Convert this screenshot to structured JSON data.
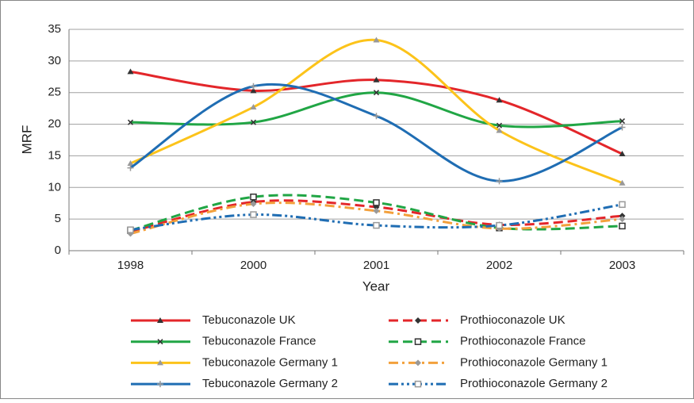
{
  "chart_data": {
    "type": "line",
    "x_label": "Year",
    "y_label": "MRF",
    "categories": [
      "1998",
      "2000",
      "2001",
      "2002",
      "2003"
    ],
    "ylim": [
      0,
      35
    ],
    "yticks": [
      0,
      5,
      10,
      15,
      20,
      25,
      30,
      35
    ],
    "grid": true,
    "legend": "bottom",
    "series": [
      {
        "name": "Tebuconazole UK",
        "color": "#e3262a",
        "dash": "solid",
        "marker": "triangle",
        "marker_color": "#333333",
        "values": [
          28.3,
          25.3,
          27,
          23.8,
          15.3
        ]
      },
      {
        "name": "Prothioconazole UK",
        "color": "#e3262a",
        "dash": "dash",
        "marker": "diamond",
        "marker_color": "#333333",
        "values": [
          3.0,
          7.7,
          6.9,
          4.1,
          5.5
        ]
      },
      {
        "name": "Tebuconazole France",
        "color": "#21a645",
        "dash": "solid",
        "marker": "cross",
        "marker_color": "#333333",
        "values": [
          20.3,
          20.3,
          25,
          19.8,
          20.5
        ]
      },
      {
        "name": "Prothioconazole France",
        "color": "#21a645",
        "dash": "dash",
        "marker": "square",
        "marker_color": "#333333",
        "values": [
          3.2,
          8.5,
          7.6,
          3.6,
          3.9
        ]
      },
      {
        "name": "Tebuconazole Germany 1",
        "color": "#fcc31a",
        "dash": "solid",
        "marker": "triangle",
        "marker_color": "#999999",
        "values": [
          13.8,
          22.7,
          33.3,
          19,
          10.7
        ]
      },
      {
        "name": "Prothioconazole Germany 1",
        "color": "#f3a03c",
        "dash": "dashdot",
        "marker": "diamond",
        "marker_color": "#999999",
        "values": [
          2.7,
          7.4,
          6.3,
          3.5,
          5.0
        ]
      },
      {
        "name": "Tebuconazole Germany 2",
        "color": "#1f6db3",
        "dash": "solid",
        "marker": "plus",
        "marker_color": "#999999",
        "values": [
          13.1,
          26,
          21.3,
          11,
          19.5
        ]
      },
      {
        "name": "Prothioconazole Germany 2",
        "color": "#1f6db3",
        "dash": "dashdotdot",
        "marker": "square",
        "marker_color": "#999999",
        "values": [
          3.3,
          5.7,
          4.0,
          4.0,
          7.3
        ]
      }
    ]
  }
}
